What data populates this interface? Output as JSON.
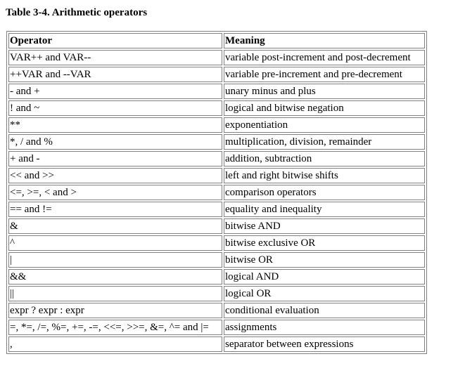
{
  "caption": "Table 3-4. Arithmetic operators",
  "table": {
    "headers": [
      "Operator",
      "Meaning"
    ],
    "rows": [
      [
        "VAR++ and VAR--",
        "variable post-increment and post-decrement"
      ],
      [
        "++VAR and --VAR",
        "variable pre-increment and pre-decrement"
      ],
      [
        "- and +",
        "unary minus and plus"
      ],
      [
        "! and ~",
        "logical and bitwise negation"
      ],
      [
        "**",
        "exponentiation"
      ],
      [
        "*, / and %",
        "multiplication, division, remainder"
      ],
      [
        "+ and -",
        "addition, subtraction"
      ],
      [
        "<< and >>",
        "left and right bitwise shifts"
      ],
      [
        "<=, >=, < and >",
        "comparison operators"
      ],
      [
        "== and !=",
        "equality and inequality"
      ],
      [
        "&",
        "bitwise AND"
      ],
      [
        "^",
        "bitwise exclusive OR"
      ],
      [
        "|",
        "bitwise OR"
      ],
      [
        "&&",
        "logical AND"
      ],
      [
        "||",
        "logical OR"
      ],
      [
        "expr ? expr : expr",
        "conditional evaluation"
      ],
      [
        "=, *=, /=, %=, +=, -=, <<=, >>=, &=, ^= and |=",
        "assignments"
      ],
      [
        ",",
        "separator between expressions"
      ]
    ]
  }
}
